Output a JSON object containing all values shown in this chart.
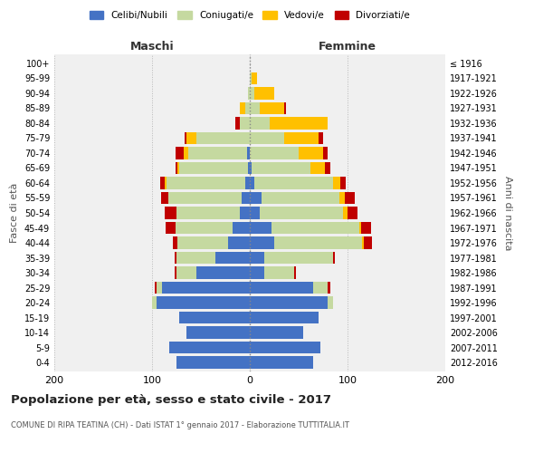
{
  "age_groups": [
    "0-4",
    "5-9",
    "10-14",
    "15-19",
    "20-24",
    "25-29",
    "30-34",
    "35-39",
    "40-44",
    "45-49",
    "50-54",
    "55-59",
    "60-64",
    "65-69",
    "70-74",
    "75-79",
    "80-84",
    "85-89",
    "90-94",
    "95-99",
    "100+"
  ],
  "birth_years": [
    "2012-2016",
    "2007-2011",
    "2002-2006",
    "1997-2001",
    "1992-1996",
    "1987-1991",
    "1982-1986",
    "1977-1981",
    "1972-1976",
    "1967-1971",
    "1962-1966",
    "1957-1961",
    "1952-1956",
    "1947-1951",
    "1942-1946",
    "1937-1941",
    "1932-1936",
    "1927-1931",
    "1922-1926",
    "1917-1921",
    "≤ 1916"
  ],
  "maschi": {
    "celibi": [
      75,
      82,
      65,
      72,
      95,
      90,
      55,
      35,
      22,
      18,
      10,
      8,
      5,
      2,
      3,
      0,
      0,
      0,
      0,
      0,
      0
    ],
    "coniugati": [
      0,
      0,
      0,
      0,
      5,
      5,
      20,
      40,
      52,
      58,
      65,
      75,
      80,
      70,
      60,
      55,
      10,
      5,
      2,
      0,
      0
    ],
    "vedovi": [
      0,
      0,
      0,
      0,
      0,
      0,
      0,
      0,
      0,
      0,
      0,
      0,
      2,
      2,
      5,
      10,
      0,
      5,
      0,
      0,
      0
    ],
    "divorziati": [
      0,
      0,
      0,
      0,
      0,
      2,
      2,
      2,
      5,
      10,
      12,
      8,
      5,
      2,
      8,
      2,
      5,
      0,
      0,
      0,
      0
    ]
  },
  "femmine": {
    "nubili": [
      65,
      72,
      55,
      70,
      80,
      65,
      15,
      15,
      25,
      22,
      10,
      12,
      5,
      2,
      0,
      0,
      0,
      0,
      0,
      0,
      0
    ],
    "coniugate": [
      0,
      0,
      0,
      0,
      5,
      15,
      30,
      70,
      90,
      90,
      85,
      80,
      80,
      60,
      50,
      35,
      20,
      10,
      5,
      2,
      0
    ],
    "vedove": [
      0,
      0,
      0,
      0,
      0,
      0,
      0,
      0,
      2,
      2,
      5,
      5,
      8,
      15,
      25,
      35,
      60,
      25,
      20,
      5,
      0
    ],
    "divorziate": [
      0,
      0,
      0,
      0,
      0,
      2,
      2,
      2,
      8,
      10,
      10,
      10,
      5,
      5,
      5,
      5,
      0,
      2,
      0,
      0,
      0
    ]
  },
  "colors": {
    "celibi": "#4472c4",
    "coniugati": "#c5d9a0",
    "vedovi": "#ffc000",
    "divorziati": "#c00000"
  },
  "legend_labels": [
    "Celibi/Nubili",
    "Coniugati/e",
    "Vedovi/e",
    "Divorziati/e"
  ],
  "xlim": 200,
  "title": "Popolazione per età, sesso e stato civile - 2017",
  "subtitle": "COMUNE DI RIPA TEATINA (CH) - Dati ISTAT 1° gennaio 2017 - Elaborazione TUTTITALIA.IT",
  "ylabel_left": "Fasce di età",
  "ylabel_right": "Anni di nascita",
  "xlabel_maschi": "Maschi",
  "xlabel_femmine": "Femmine",
  "background_color": "#ffffff",
  "grid_color": "#cccccc"
}
